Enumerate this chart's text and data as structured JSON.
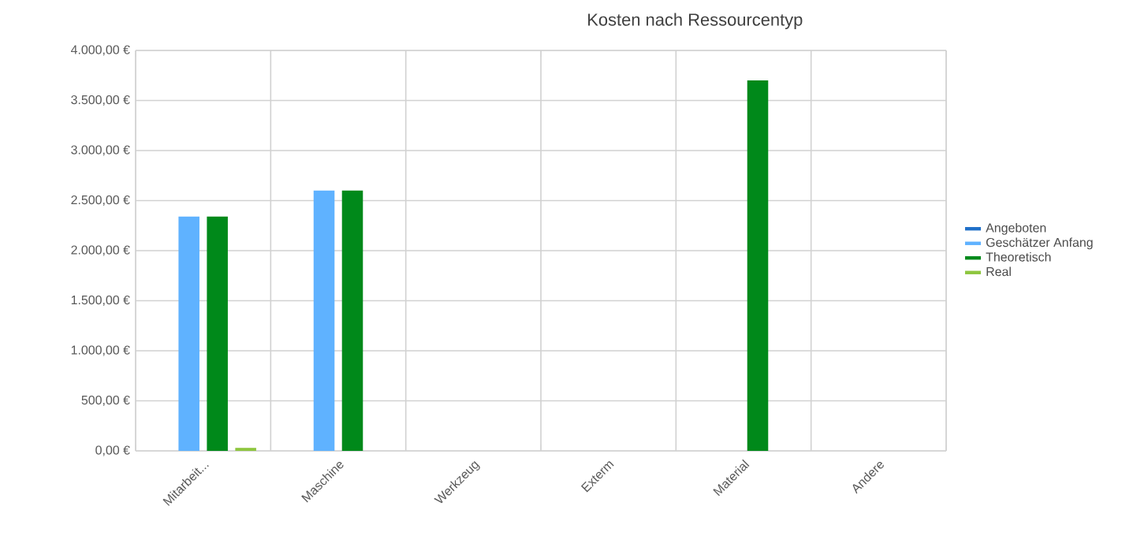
{
  "chart_data": {
    "type": "bar",
    "title": "Kosten nach Ressourcentyp",
    "categories": [
      "Mitarbeit...",
      "Maschine",
      "Werkzeug",
      "Exterm",
      "Material",
      "Andere"
    ],
    "series": [
      {
        "name": "Angeboten",
        "color": "#1f6fc8",
        "values": [
          0,
          0,
          0,
          0,
          0,
          0
        ]
      },
      {
        "name": "Geschätzer Anfang",
        "color": "#5fb2ff",
        "values": [
          2340,
          2600,
          0,
          0,
          0,
          0
        ]
      },
      {
        "name": "Theoretisch",
        "color": "#00891a",
        "values": [
          2340,
          2600,
          0,
          0,
          3700,
          0
        ]
      },
      {
        "name": "Real",
        "color": "#8ec63f",
        "values": [
          30,
          0,
          0,
          0,
          0,
          0
        ]
      }
    ],
    "ylim": [
      0,
      4000
    ],
    "yticks": [
      {
        "value": 0,
        "label": "0,00 €"
      },
      {
        "value": 500,
        "label": "500,00 €"
      },
      {
        "value": 1000,
        "label": "1.000,00 €"
      },
      {
        "value": 1500,
        "label": "1.500,00 €"
      },
      {
        "value": 2000,
        "label": "2.000,00 €"
      },
      {
        "value": 2500,
        "label": "2.500,00 €"
      },
      {
        "value": 3000,
        "label": "3.000,00 €"
      },
      {
        "value": 3500,
        "label": "3.500,00 €"
      },
      {
        "value": 4000,
        "label": "4.000,00 €"
      }
    ],
    "grid": true,
    "legend": "right"
  }
}
